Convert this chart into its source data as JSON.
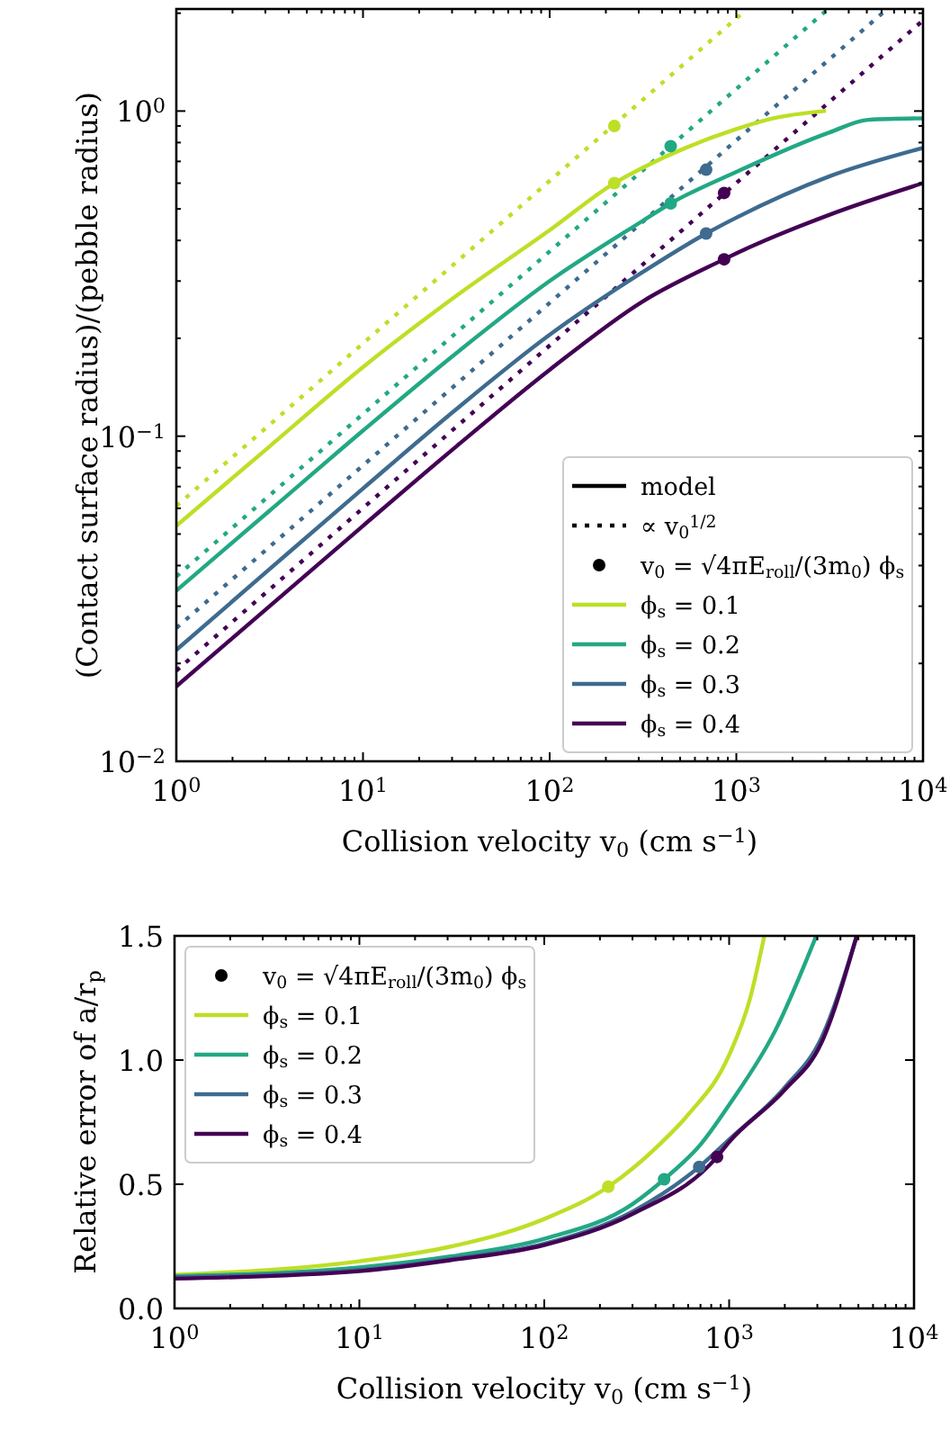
{
  "chart_data": [
    {
      "type": "line",
      "xlabel": "Collision velocity v$_{0}$ (cm s$^{−1}$)",
      "ylabel": "(Contact surface radius)/(pebble radius)",
      "log": "xy",
      "legend": "lower right",
      "annotations": [
        "model",
        "∝ v$_{0}$$^{1/2}$",
        "v$_{0}$ = √4πE$_{roll}$/(3m$_{0}$) ϕ$_{s}$"
      ],
      "xlim": [
        1,
        10000
      ],
      "ylim": [
        0.01,
        2.06
      ],
      "xticks": [
        {
          "value": 1,
          "label": "10$^{0}$"
        },
        {
          "value": 2,
          "label": null
        },
        {
          "value": 3,
          "label": null
        },
        {
          "value": 4,
          "label": null
        },
        {
          "value": 5,
          "label": null
        },
        {
          "value": 6,
          "label": null
        },
        {
          "value": 7,
          "label": null
        },
        {
          "value": 8,
          "label": null
        },
        {
          "value": 9,
          "label": null
        },
        {
          "value": 10,
          "label": "10$^{1}$"
        },
        {
          "value": 20,
          "label": null
        },
        {
          "value": 30,
          "label": null
        },
        {
          "value": 40,
          "label": null
        },
        {
          "value": 50,
          "label": null
        },
        {
          "value": 60,
          "label": null
        },
        {
          "value": 70,
          "label": null
        },
        {
          "value": 80,
          "label": null
        },
        {
          "value": 90,
          "label": null
        },
        {
          "value": 100,
          "label": "10$^{2}$"
        },
        {
          "value": 200,
          "label": null
        },
        {
          "value": 300,
          "label": null
        },
        {
          "value": 400,
          "label": null
        },
        {
          "value": 500,
          "label": null
        },
        {
          "value": 600,
          "label": null
        },
        {
          "value": 700,
          "label": null
        },
        {
          "value": 800,
          "label": null
        },
        {
          "value": 900,
          "label": null
        },
        {
          "value": 1000,
          "label": "10$^{3}$"
        },
        {
          "value": 2000,
          "label": null
        },
        {
          "value": 3000,
          "label": null
        },
        {
          "value": 4000,
          "label": null
        },
        {
          "value": 5000,
          "label": null
        },
        {
          "value": 6000,
          "label": null
        },
        {
          "value": 7000,
          "label": null
        },
        {
          "value": 8000,
          "label": null
        },
        {
          "value": 9000,
          "label": null
        },
        {
          "value": 10000,
          "label": "10$^{4}$"
        }
      ],
      "yticks": [
        {
          "value": 0.01,
          "label": "10$^{−2}$"
        },
        {
          "value": 0.02,
          "label": null
        },
        {
          "value": 0.03,
          "label": null
        },
        {
          "value": 0.04,
          "label": null
        },
        {
          "value": 0.05,
          "label": null
        },
        {
          "value": 0.06,
          "label": null
        },
        {
          "value": 0.07,
          "label": null
        },
        {
          "value": 0.08,
          "label": null
        },
        {
          "value": 0.09,
          "label": null
        },
        {
          "value": 0.1,
          "label": "10$^{−1}$"
        },
        {
          "value": 0.2,
          "label": null
        },
        {
          "value": 0.3,
          "label": null
        },
        {
          "value": 0.4,
          "label": null
        },
        {
          "value": 0.5,
          "label": null
        },
        {
          "value": 0.6,
          "label": null
        },
        {
          "value": 0.7,
          "label": null
        },
        {
          "value": 0.8,
          "label": null
        },
        {
          "value": 0.9,
          "label": null
        },
        {
          "value": 1,
          "label": "10$^{0}$"
        },
        {
          "value": 2,
          "label": null
        }
      ],
      "series": [
        {
          "line_style": "dotted",
          "color": "#bddf26",
          "x": [
            1,
            1130
          ],
          "values": [
            0.061,
            2.05
          ]
        },
        {
          "line_style": "dotted",
          "color": "#22a884",
          "x": [
            1,
            3070
          ],
          "values": [
            0.037,
            2.05
          ]
        },
        {
          "line_style": "dotted",
          "color": "#3e6b8f",
          "x": [
            1,
            6360
          ],
          "values": [
            0.0257,
            2.05
          ]
        },
        {
          "line_style": "dotted",
          "color": "#440154",
          "x": [
            1,
            10000
          ],
          "values": [
            0.019,
            1.9
          ]
        },
        {
          "type": "scatter",
          "marker": "circle",
          "color": "#000000",
          "colors": [
            "#bddf26",
            "#bddf26",
            "#22a884",
            "#22a884",
            "#3e6b8f",
            "#3e6b8f",
            "#440154",
            "#440154"
          ],
          "x": [
            222,
            222,
            445,
            445,
            689,
            689,
            860,
            860
          ],
          "values": [
            0.9,
            0.6,
            0.78,
            0.52,
            0.66,
            0.42,
            0.56,
            0.35
          ]
        },
        {
          "line_style": "solid",
          "name": "ϕ$_{s}$ = 0.1",
          "color": "#bddf26",
          "x": [
            1,
            3.16,
            10,
            31.6,
            100,
            222,
            316,
            1000,
            1580,
            2950
          ],
          "values": [
            0.053,
            0.093,
            0.163,
            0.27,
            0.43,
            0.6,
            0.67,
            0.88,
            0.95,
            1.0
          ]
        },
        {
          "line_style": "solid",
          "name": "ϕ$_{s}$ = 0.2",
          "color": "#22a884",
          "x": [
            1,
            3.16,
            10,
            31.6,
            100,
            316,
            445,
            1000,
            3160,
            5100,
            10000
          ],
          "values": [
            0.0335,
            0.059,
            0.104,
            0.18,
            0.3,
            0.46,
            0.52,
            0.65,
            0.86,
            0.94,
            0.95
          ]
        },
        {
          "line_style": "solid",
          "name": "ϕ$_{s}$ = 0.3",
          "color": "#3e6b8f",
          "x": [
            1,
            3.16,
            10,
            31.6,
            100,
            316,
            689,
            1000,
            3160,
            10000
          ],
          "values": [
            0.022,
            0.039,
            0.069,
            0.121,
            0.205,
            0.32,
            0.42,
            0.47,
            0.63,
            0.77
          ]
        },
        {
          "line_style": "solid",
          "name": "ϕ$_{s}$ = 0.4",
          "color": "#440154",
          "x": [
            1,
            3.16,
            10,
            31.6,
            100,
            316,
            860,
            1000,
            3160,
            10000
          ],
          "values": [
            0.017,
            0.03,
            0.053,
            0.093,
            0.16,
            0.26,
            0.35,
            0.365,
            0.48,
            0.6
          ]
        }
      ]
    },
    {
      "type": "line",
      "xlabel": "Collision velocity v$_{0}$ (cm s$^{−1}$)",
      "ylabel": "Relative error of a/r$_{p}$",
      "log": "x",
      "legend": "upper left",
      "annotations": [
        "v$_{0}$ = √4πE$_{roll}$/(3m$_{0}$) ϕ$_{s}$"
      ],
      "xlim": [
        1,
        10000
      ],
      "ylim": [
        0,
        1.5
      ],
      "xticks": [
        {
          "value": 1,
          "label": "10$^{0}$"
        },
        {
          "value": 2,
          "label": null
        },
        {
          "value": 3,
          "label": null
        },
        {
          "value": 4,
          "label": null
        },
        {
          "value": 5,
          "label": null
        },
        {
          "value": 6,
          "label": null
        },
        {
          "value": 7,
          "label": null
        },
        {
          "value": 8,
          "label": null
        },
        {
          "value": 9,
          "label": null
        },
        {
          "value": 10,
          "label": "10$^{1}$"
        },
        {
          "value": 20,
          "label": null
        },
        {
          "value": 30,
          "label": null
        },
        {
          "value": 40,
          "label": null
        },
        {
          "value": 50,
          "label": null
        },
        {
          "value": 60,
          "label": null
        },
        {
          "value": 70,
          "label": null
        },
        {
          "value": 80,
          "label": null
        },
        {
          "value": 90,
          "label": null
        },
        {
          "value": 100,
          "label": "10$^{2}$"
        },
        {
          "value": 200,
          "label": null
        },
        {
          "value": 300,
          "label": null
        },
        {
          "value": 400,
          "label": null
        },
        {
          "value": 500,
          "label": null
        },
        {
          "value": 600,
          "label": null
        },
        {
          "value": 700,
          "label": null
        },
        {
          "value": 800,
          "label": null
        },
        {
          "value": 900,
          "label": null
        },
        {
          "value": 1000,
          "label": "10$^{3}$"
        },
        {
          "value": 2000,
          "label": null
        },
        {
          "value": 3000,
          "label": null
        },
        {
          "value": 4000,
          "label": null
        },
        {
          "value": 5000,
          "label": null
        },
        {
          "value": 6000,
          "label": null
        },
        {
          "value": 7000,
          "label": null
        },
        {
          "value": 8000,
          "label": null
        },
        {
          "value": 9000,
          "label": null
        },
        {
          "value": 10000,
          "label": "10$^{4}$"
        }
      ],
      "yticks": [
        {
          "value": 0,
          "label": "0.0"
        },
        0.5,
        {
          "value": 1,
          "label": "1.0"
        },
        1.5
      ],
      "series": [
        {
          "type": "scatter",
          "marker": "circle",
          "color": "#000000",
          "colors": [
            "#bddf26",
            "#22a884",
            "#3e6b8f",
            "#440154"
          ],
          "x": [
            222,
            445,
            689,
            860
          ],
          "values": [
            0.49,
            0.52,
            0.57,
            0.61
          ]
        },
        {
          "line_style": "solid",
          "name": "ϕ$_{s}$ = 0.1",
          "color": "#bddf26",
          "x": [
            1,
            10,
            31.6,
            100,
            222,
            420,
            600,
            1000,
            1300,
            1550
          ],
          "values": [
            0.135,
            0.19,
            0.25,
            0.36,
            0.49,
            0.66,
            0.78,
            1.02,
            1.25,
            1.5
          ]
        },
        {
          "line_style": "solid",
          "name": "ϕ$_{s}$ = 0.2",
          "color": "#22a884",
          "x": [
            1,
            10,
            31.6,
            100,
            300,
            445,
            700,
            1000,
            1780,
            2960
          ],
          "values": [
            0.13,
            0.165,
            0.21,
            0.28,
            0.42,
            0.52,
            0.66,
            0.82,
            1.12,
            1.5
          ]
        },
        {
          "line_style": "solid",
          "name": "ϕ$_{s}$ = 0.3",
          "color": "#3e6b8f",
          "x": [
            1,
            10,
            31.6,
            100,
            300,
            689,
            1000,
            2000,
            3160,
            4900
          ],
          "values": [
            0.125,
            0.155,
            0.2,
            0.26,
            0.39,
            0.57,
            0.68,
            0.89,
            1.09,
            1.5
          ]
        },
        {
          "line_style": "solid",
          "name": "ϕ$_{s}$ = 0.4",
          "color": "#440154",
          "x": [
            1,
            10,
            31.6,
            100,
            300,
            860,
            1000,
            2000,
            3160,
            4900
          ],
          "values": [
            0.12,
            0.15,
            0.195,
            0.255,
            0.38,
            0.61,
            0.67,
            0.88,
            1.07,
            1.5
          ]
        }
      ]
    }
  ]
}
